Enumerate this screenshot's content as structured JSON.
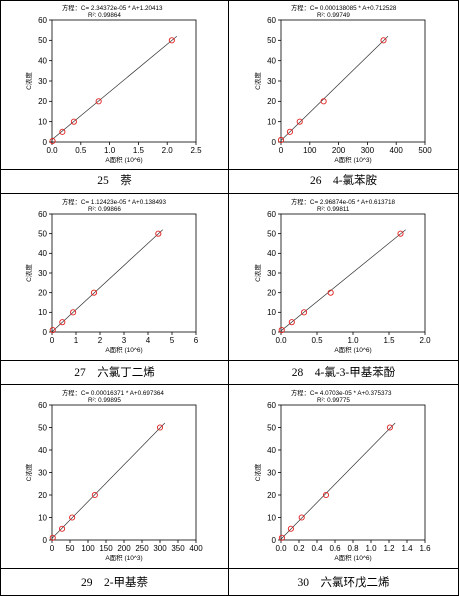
{
  "charts": [
    {
      "equation": "方程：C= 2.34372e-05 * A+1.20413",
      "r2": "R²: 0.99864",
      "ylabel": "C浓度",
      "xlabel": "A面积 (10^6)",
      "x_ticks": [
        "0.0",
        "0.5",
        "1.0",
        "1.5",
        "2.0",
        "2.5"
      ],
      "y_ticks": [
        "0",
        "10",
        "20",
        "30",
        "40",
        "50",
        "60"
      ],
      "caption_num": "25",
      "caption_name": "萘"
    },
    {
      "equation": "方程：C= 0.000138085 * A+0.712528",
      "r2": "R²: 0.99749",
      "ylabel": "C浓度",
      "xlabel": "A面积 (10^3)",
      "x_ticks": [
        "0",
        "100",
        "200",
        "300",
        "400",
        "500"
      ],
      "y_ticks": [
        "0",
        "10",
        "20",
        "30",
        "40",
        "50",
        "60"
      ],
      "caption_num": "26",
      "caption_name": "4-氯苯胺"
    },
    {
      "equation": "方程：C= 1.12423e-05 * A+0.138493",
      "r2": "R²: 0.99866",
      "ylabel": "C浓度",
      "xlabel": "A面积 (10^6)",
      "x_ticks": [
        "0",
        "1",
        "2",
        "3",
        "4",
        "5",
        "6"
      ],
      "y_ticks": [
        "0",
        "10",
        "20",
        "30",
        "40",
        "50",
        "60"
      ],
      "caption_num": "27",
      "caption_name": "六氯丁二烯"
    },
    {
      "equation": "方程：C= 2.96874e-05 * A+0.613718",
      "r2": "R²: 0.99811",
      "ylabel": "C浓度",
      "xlabel": "A面积 (10^6)",
      "x_ticks": [
        "0.0",
        "0.5",
        "1.0",
        "1.5",
        "2.0"
      ],
      "y_ticks": [
        "0",
        "10",
        "20",
        "30",
        "40",
        "50",
        "60"
      ],
      "caption_num": "28",
      "caption_name": "4-氯-3-甲基苯酚"
    },
    {
      "equation": "方程：C= 0.00016371 * A+0.697364",
      "r2": "R²: 0.99895",
      "ylabel": "C浓度",
      "xlabel": "A面积 (10^3)",
      "x_ticks": [
        "0",
        "50",
        "100",
        "150",
        "200",
        "250",
        "300",
        "350",
        "400"
      ],
      "y_ticks": [
        "0",
        "10",
        "20",
        "30",
        "40",
        "50",
        "60"
      ],
      "caption_num": "29",
      "caption_name": "2-甲基萘"
    },
    {
      "equation": "方程：C= 4.0703e-05 * A+0.375373",
      "r2": "R²: 0.99775",
      "ylabel": "C浓度",
      "xlabel": "A面积 (10^6)",
      "x_ticks": [
        "0.0",
        "0.2",
        "0.4",
        "0.6",
        "0.8",
        "1.0",
        "1.2",
        "1.4",
        "1.6"
      ],
      "y_ticks": [
        "0",
        "10",
        "20",
        "30",
        "40",
        "50",
        "60"
      ],
      "caption_num": "30",
      "caption_name": "六氯环戊二烯"
    }
  ],
  "chart_data": [
    {
      "type": "scatter",
      "xlim": [
        0,
        2.5
      ],
      "ylim": [
        0,
        60
      ],
      "points": [
        [
          0.01,
          0.5
        ],
        [
          0.18,
          5
        ],
        [
          0.38,
          10
        ],
        [
          0.81,
          20
        ],
        [
          2.08,
          50
        ]
      ],
      "fit": {
        "slope": 23.4372,
        "intercept": 1.20413
      }
    },
    {
      "type": "scatter",
      "xlim": [
        0,
        500
      ],
      "ylim": [
        0,
        60
      ],
      "points": [
        [
          0,
          1
        ],
        [
          31,
          5
        ],
        [
          65,
          10
        ],
        [
          148,
          20
        ],
        [
          356,
          50
        ]
      ],
      "fit": {
        "slope": 0.138085,
        "intercept": 0.712528
      }
    },
    {
      "type": "scatter",
      "xlim": [
        0,
        6
      ],
      "ylim": [
        0,
        60
      ],
      "points": [
        [
          0.03,
          1
        ],
        [
          0.43,
          5
        ],
        [
          0.88,
          10
        ],
        [
          1.75,
          20
        ],
        [
          4.43,
          50
        ]
      ],
      "fit": {
        "slope": 11.2423,
        "intercept": 0.138493
      }
    },
    {
      "type": "scatter",
      "xlim": [
        0,
        2
      ],
      "ylim": [
        0,
        60
      ],
      "points": [
        [
          0.01,
          1
        ],
        [
          0.15,
          5
        ],
        [
          0.32,
          10
        ],
        [
          0.69,
          20
        ],
        [
          1.66,
          50
        ]
      ],
      "fit": {
        "slope": 29.6874,
        "intercept": 0.613718
      }
    },
    {
      "type": "scatter",
      "xlim": [
        0,
        400
      ],
      "ylim": [
        0,
        60
      ],
      "points": [
        [
          2,
          1
        ],
        [
          28,
          5
        ],
        [
          56,
          10
        ],
        [
          119,
          20
        ],
        [
          300,
          50
        ]
      ],
      "fit": {
        "slope": 0.16371,
        "intercept": 0.697364
      }
    },
    {
      "type": "scatter",
      "xlim": [
        0,
        1.6
      ],
      "ylim": [
        0,
        60
      ],
      "points": [
        [
          0.01,
          1
        ],
        [
          0.11,
          5
        ],
        [
          0.23,
          10
        ],
        [
          0.5,
          20
        ],
        [
          1.21,
          50
        ]
      ],
      "fit": {
        "slope": 40.703,
        "intercept": 0.375373
      }
    }
  ]
}
